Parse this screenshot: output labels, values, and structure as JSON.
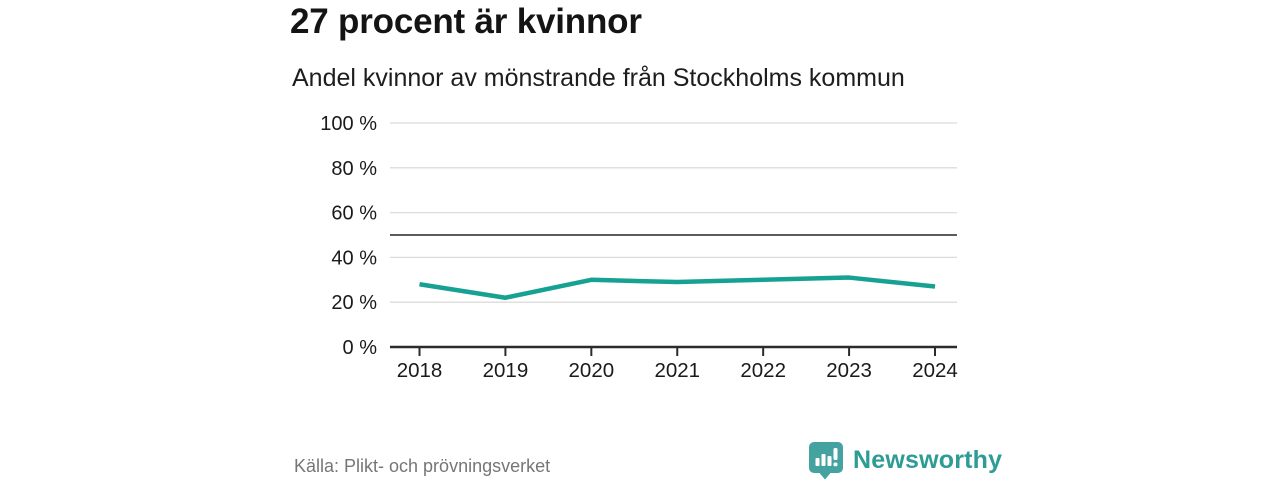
{
  "header": {
    "title": "27 procent är kvinnor",
    "subtitle": "Andel kvinnor av mönstrande från Stockholms kommun"
  },
  "chart_data": {
    "type": "line",
    "title": "27 procent är kvinnor",
    "subtitle": "Andel kvinnor av mönstrande från Stockholms kommun",
    "categories": [
      "2018",
      "2019",
      "2020",
      "2021",
      "2022",
      "2023",
      "2024"
    ],
    "series": [
      {
        "name": "Andel kvinnor av mönstrande från Stockholms kommun",
        "values": [
          28,
          22,
          30,
          29,
          30,
          31,
          27
        ]
      }
    ],
    "unit": "%",
    "xlabel": "",
    "ylabel": "",
    "ylim": [
      0,
      100
    ],
    "yticks": [
      0,
      20,
      40,
      60,
      80,
      100
    ],
    "ytick_suffix": " %",
    "reference_line": 50,
    "grid": true,
    "legend_position": "none",
    "colors": {
      "line": "#16a192",
      "grid": "#dcdcdc",
      "axis": "#2b2b2b",
      "reference": "#5c5c5c",
      "tick_text": "#1a1a1a"
    }
  },
  "footer": {
    "source": "Källa: Plikt- och prövningsverket",
    "brand_name": "Newsworthy",
    "brand_color": "#2d9c95",
    "logo_color": "#44a3a0"
  }
}
